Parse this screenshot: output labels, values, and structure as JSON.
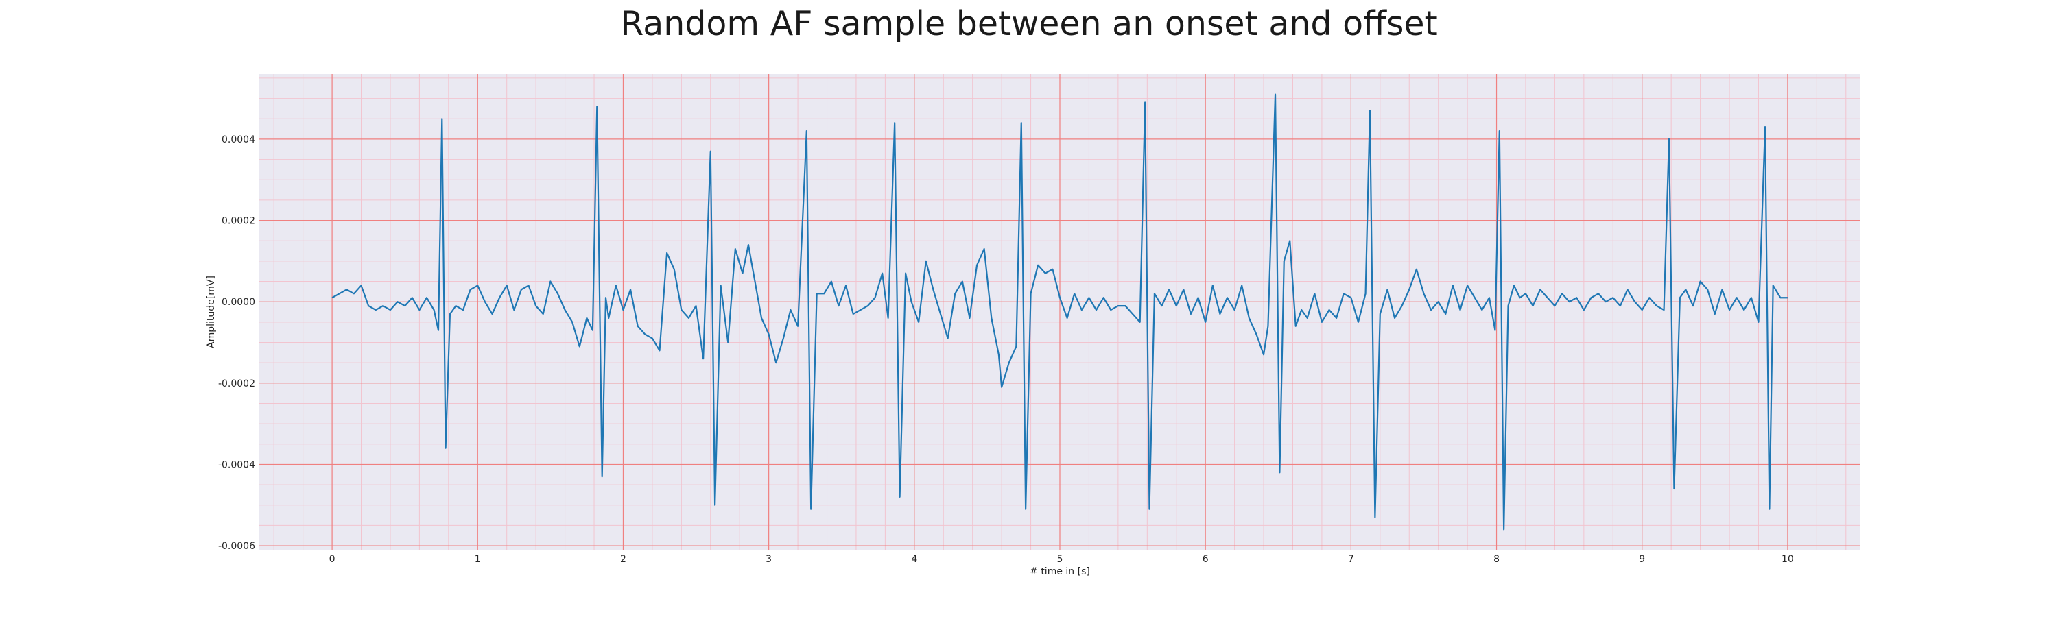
{
  "chart_data": {
    "type": "line",
    "title": "Random AF sample between an onset and offset",
    "xlabel": "# time in [s]",
    "ylabel": "Amplitude[mV]",
    "xlim": [
      -0.5,
      10.5
    ],
    "ylim": [
      -0.00061,
      0.00056
    ],
    "xticks": [
      0,
      1,
      2,
      3,
      4,
      5,
      6,
      7,
      8,
      9,
      10
    ],
    "xtick_labels": [
      "0",
      "1",
      "2",
      "3",
      "4",
      "5",
      "6",
      "7",
      "8",
      "9",
      "10"
    ],
    "yticks": [
      -0.0006,
      -0.0004,
      -0.0002,
      0.0,
      0.0002,
      0.0004
    ],
    "ytick_labels": [
      "-0.0006",
      "-0.0004",
      "-0.0002",
      "0.0000",
      "0.0002",
      "0.0004"
    ],
    "grid": true,
    "minor_grid": true,
    "colors": {
      "line": "#1f77b4",
      "background": "#eae9f2",
      "major_grid": "#f08080",
      "minor_grid": "#f2c4cf"
    },
    "series": [
      {
        "points": [
          [
            0.0,
            1e-05
          ],
          [
            0.05,
            2e-05
          ],
          [
            0.1,
            3e-05
          ],
          [
            0.15,
            2e-05
          ],
          [
            0.2,
            4e-05
          ],
          [
            0.25,
            -1e-05
          ],
          [
            0.3,
            -2e-05
          ],
          [
            0.35,
            -1e-05
          ],
          [
            0.4,
            -2e-05
          ],
          [
            0.45,
            0.0
          ],
          [
            0.5,
            -1e-05
          ],
          [
            0.55,
            1e-05
          ],
          [
            0.6,
            -2e-05
          ],
          [
            0.65,
            1e-05
          ],
          [
            0.7,
            -2e-05
          ],
          [
            0.73,
            -7e-05
          ],
          [
            0.755,
            0.00045
          ],
          [
            0.78,
            -0.00036
          ],
          [
            0.81,
            -3e-05
          ],
          [
            0.85,
            -1e-05
          ],
          [
            0.9,
            -2e-05
          ],
          [
            0.95,
            3e-05
          ],
          [
            1.0,
            4e-05
          ],
          [
            1.05,
            0.0
          ],
          [
            1.1,
            -3e-05
          ],
          [
            1.15,
            1e-05
          ],
          [
            1.2,
            4e-05
          ],
          [
            1.25,
            -2e-05
          ],
          [
            1.3,
            3e-05
          ],
          [
            1.35,
            4e-05
          ],
          [
            1.4,
            -1e-05
          ],
          [
            1.45,
            -3e-05
          ],
          [
            1.5,
            5e-05
          ],
          [
            1.55,
            2e-05
          ],
          [
            1.6,
            -2e-05
          ],
          [
            1.65,
            -5e-05
          ],
          [
            1.7,
            -0.00011
          ],
          [
            1.75,
            -4e-05
          ],
          [
            1.79,
            -7e-05
          ],
          [
            1.82,
            0.00048
          ],
          [
            1.855,
            -0.00043
          ],
          [
            1.88,
            1e-05
          ],
          [
            1.9,
            -4e-05
          ],
          [
            1.95,
            4e-05
          ],
          [
            2.0,
            -2e-05
          ],
          [
            2.05,
            3e-05
          ],
          [
            2.1,
            -6e-05
          ],
          [
            2.15,
            -8e-05
          ],
          [
            2.2,
            -9e-05
          ],
          [
            2.25,
            -0.00012
          ],
          [
            2.3,
            0.00012
          ],
          [
            2.35,
            8e-05
          ],
          [
            2.4,
            -2e-05
          ],
          [
            2.45,
            -4e-05
          ],
          [
            2.5,
            -1e-05
          ],
          [
            2.55,
            -0.00014
          ],
          [
            2.6,
            0.00037
          ],
          [
            2.63,
            -0.0005
          ],
          [
            2.67,
            4e-05
          ],
          [
            2.72,
            -0.0001
          ],
          [
            2.77,
            0.00013
          ],
          [
            2.82,
            7e-05
          ],
          [
            2.86,
            0.00014
          ],
          [
            2.9,
            6e-05
          ],
          [
            2.95,
            -4e-05
          ],
          [
            3.0,
            -8e-05
          ],
          [
            3.05,
            -0.00015
          ],
          [
            3.1,
            -9e-05
          ],
          [
            3.15,
            -2e-05
          ],
          [
            3.2,
            -6e-05
          ],
          [
            3.26,
            0.00042
          ],
          [
            3.29,
            -0.00051
          ],
          [
            3.33,
            2e-05
          ],
          [
            3.38,
            2e-05
          ],
          [
            3.43,
            5e-05
          ],
          [
            3.48,
            -1e-05
          ],
          [
            3.53,
            4e-05
          ],
          [
            3.58,
            -3e-05
          ],
          [
            3.63,
            -2e-05
          ],
          [
            3.68,
            -1e-05
          ],
          [
            3.73,
            1e-05
          ],
          [
            3.78,
            7e-05
          ],
          [
            3.82,
            -4e-05
          ],
          [
            3.865,
            0.00044
          ],
          [
            3.9,
            -0.00048
          ],
          [
            3.94,
            7e-05
          ],
          [
            3.98,
            0.0
          ],
          [
            4.03,
            -5e-05
          ],
          [
            4.08,
            0.0001
          ],
          [
            4.13,
            3e-05
          ],
          [
            4.18,
            -3e-05
          ],
          [
            4.23,
            -9e-05
          ],
          [
            4.28,
            2e-05
          ],
          [
            4.33,
            5e-05
          ],
          [
            4.38,
            -4e-05
          ],
          [
            4.43,
            9e-05
          ],
          [
            4.48,
            0.00013
          ],
          [
            4.53,
            -4e-05
          ],
          [
            4.58,
            -0.00013
          ],
          [
            4.6,
            -0.00021
          ],
          [
            4.65,
            -0.00015
          ],
          [
            4.7,
            -0.00011
          ],
          [
            4.735,
            0.00044
          ],
          [
            4.765,
            -0.00051
          ],
          [
            4.8,
            2e-05
          ],
          [
            4.85,
            9e-05
          ],
          [
            4.9,
            7e-05
          ],
          [
            4.95,
            8e-05
          ],
          [
            5.0,
            1e-05
          ],
          [
            5.05,
            -4e-05
          ],
          [
            5.1,
            2e-05
          ],
          [
            5.15,
            -2e-05
          ],
          [
            5.2,
            1e-05
          ],
          [
            5.25,
            -2e-05
          ],
          [
            5.3,
            1e-05
          ],
          [
            5.35,
            -2e-05
          ],
          [
            5.4,
            -1e-05
          ],
          [
            5.45,
            -1e-05
          ],
          [
            5.5,
            -3e-05
          ],
          [
            5.55,
            -5e-05
          ],
          [
            5.585,
            0.00049
          ],
          [
            5.615,
            -0.00051
          ],
          [
            5.65,
            2e-05
          ],
          [
            5.7,
            -1e-05
          ],
          [
            5.75,
            3e-05
          ],
          [
            5.8,
            -1e-05
          ],
          [
            5.85,
            3e-05
          ],
          [
            5.9,
            -3e-05
          ],
          [
            5.95,
            1e-05
          ],
          [
            6.0,
            -5e-05
          ],
          [
            6.05,
            4e-05
          ],
          [
            6.1,
            -3e-05
          ],
          [
            6.15,
            1e-05
          ],
          [
            6.2,
            -2e-05
          ],
          [
            6.25,
            4e-05
          ],
          [
            6.3,
            -4e-05
          ],
          [
            6.35,
            -8e-05
          ],
          [
            6.4,
            -0.00013
          ],
          [
            6.43,
            -6e-05
          ],
          [
            6.48,
            0.00051
          ],
          [
            6.51,
            -0.00042
          ],
          [
            6.54,
            0.0001
          ],
          [
            6.58,
            0.00015
          ],
          [
            6.62,
            -6e-05
          ],
          [
            6.66,
            -2e-05
          ],
          [
            6.7,
            -4e-05
          ],
          [
            6.75,
            2e-05
          ],
          [
            6.8,
            -5e-05
          ],
          [
            6.85,
            -2e-05
          ],
          [
            6.9,
            -4e-05
          ],
          [
            6.95,
            2e-05
          ],
          [
            7.0,
            1e-05
          ],
          [
            7.05,
            -5e-05
          ],
          [
            7.1,
            2e-05
          ],
          [
            7.13,
            0.00047
          ],
          [
            7.165,
            -0.00053
          ],
          [
            7.2,
            -3e-05
          ],
          [
            7.25,
            3e-05
          ],
          [
            7.3,
            -4e-05
          ],
          [
            7.35,
            -1e-05
          ],
          [
            7.4,
            3e-05
          ],
          [
            7.45,
            8e-05
          ],
          [
            7.5,
            2e-05
          ],
          [
            7.55,
            -2e-05
          ],
          [
            7.6,
            0.0
          ],
          [
            7.65,
            -3e-05
          ],
          [
            7.7,
            4e-05
          ],
          [
            7.75,
            -2e-05
          ],
          [
            7.8,
            4e-05
          ],
          [
            7.85,
            1e-05
          ],
          [
            7.9,
            -2e-05
          ],
          [
            7.95,
            1e-05
          ],
          [
            7.99,
            -7e-05
          ],
          [
            8.02,
            0.00042
          ],
          [
            8.05,
            -0.00056
          ],
          [
            8.08,
            -1e-05
          ],
          [
            8.12,
            4e-05
          ],
          [
            8.16,
            1e-05
          ],
          [
            8.2,
            2e-05
          ],
          [
            8.25,
            -1e-05
          ],
          [
            8.3,
            3e-05
          ],
          [
            8.35,
            1e-05
          ],
          [
            8.4,
            -1e-05
          ],
          [
            8.45,
            2e-05
          ],
          [
            8.5,
            0.0
          ],
          [
            8.55,
            1e-05
          ],
          [
            8.6,
            -2e-05
          ],
          [
            8.65,
            1e-05
          ],
          [
            8.7,
            2e-05
          ],
          [
            8.75,
            0.0
          ],
          [
            8.8,
            1e-05
          ],
          [
            8.85,
            -1e-05
          ],
          [
            8.9,
            3e-05
          ],
          [
            8.95,
            0.0
          ],
          [
            9.0,
            -2e-05
          ],
          [
            9.05,
            1e-05
          ],
          [
            9.1,
            -1e-05
          ],
          [
            9.15,
            -2e-05
          ],
          [
            9.185,
            0.0004
          ],
          [
            9.22,
            -0.00046
          ],
          [
            9.26,
            1e-05
          ],
          [
            9.3,
            3e-05
          ],
          [
            9.35,
            -1e-05
          ],
          [
            9.4,
            5e-05
          ],
          [
            9.45,
            3e-05
          ],
          [
            9.5,
            -3e-05
          ],
          [
            9.55,
            3e-05
          ],
          [
            9.6,
            -2e-05
          ],
          [
            9.65,
            1e-05
          ],
          [
            9.7,
            -2e-05
          ],
          [
            9.75,
            1e-05
          ],
          [
            9.8,
            -5e-05
          ],
          [
            9.845,
            0.00043
          ],
          [
            9.875,
            -0.00051
          ],
          [
            9.9,
            4e-05
          ],
          [
            9.95,
            1e-05
          ],
          [
            10.0,
            1e-05
          ]
        ]
      }
    ]
  }
}
